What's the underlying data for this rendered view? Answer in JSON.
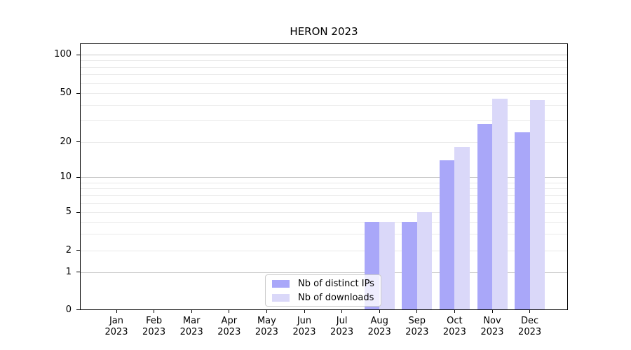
{
  "chart_data": {
    "type": "bar",
    "title": "HERON 2023",
    "categories": [
      "Jan 2023",
      "Feb 2023",
      "Mar 2023",
      "Apr 2023",
      "May 2023",
      "Jun 2023",
      "Jul 2023",
      "Aug 2023",
      "Sep 2023",
      "Oct 2023",
      "Nov 2023",
      "Dec 2023"
    ],
    "series": [
      {
        "name": "Nb of distinct IPs",
        "color": "#a9a7f9",
        "values": [
          0,
          0,
          0,
          0,
          0,
          0,
          0,
          4,
          4,
          14,
          28,
          24
        ]
      },
      {
        "name": "Nb of downloads",
        "color": "#dad8f9",
        "values": [
          0,
          0,
          0,
          0,
          0,
          0,
          0,
          4,
          5,
          18,
          45,
          44
        ]
      }
    ],
    "yscale": "symlog",
    "yticks": [
      0,
      1,
      2,
      5,
      10,
      20,
      50,
      100
    ],
    "ytick_labels": [
      "0",
      "1",
      "2",
      "5",
      "10",
      "20",
      "50",
      "100"
    ],
    "ylim": [
      0,
      100
    ],
    "grid": "horizontal",
    "grid_minor_values": [
      2,
      3,
      4,
      5,
      6,
      7,
      8,
      9,
      20,
      30,
      40,
      50,
      60,
      70,
      80,
      90
    ],
    "grid_major_values": [
      1,
      10,
      100
    ],
    "legend_position": "lower center",
    "colors": {
      "bar_dark": "#a9a7f9",
      "bar_light": "#dad8f9",
      "grid_minor": "#eaeaea",
      "grid_major": "#c9c9c9",
      "spine": "#000000",
      "background": "#ffffff"
    }
  }
}
